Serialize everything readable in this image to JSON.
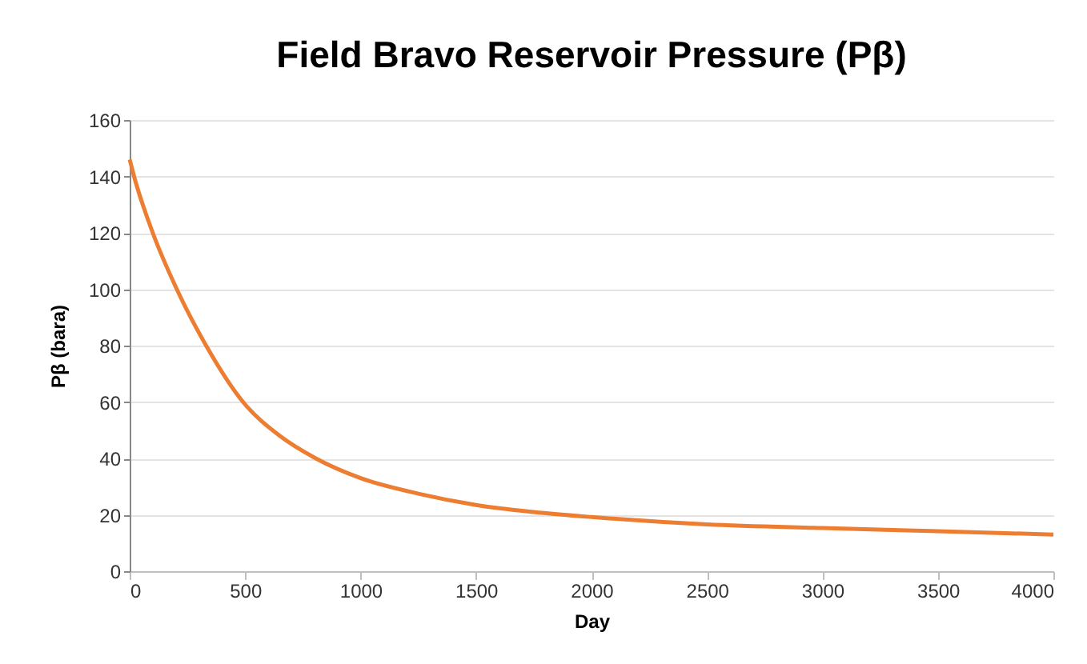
{
  "chart_data": {
    "type": "line",
    "title": "Field Bravo Reservoir Pressure (Pβ)",
    "xlabel": "Day",
    "ylabel": "Pβ (bara)",
    "x": [
      0,
      19,
      100,
      204,
      331,
      491,
      650,
      806,
      1000,
      1250,
      1500,
      1750,
      2000,
      2500,
      3000,
      3500,
      4000
    ],
    "series": [
      {
        "color": "#ed7d31",
        "values": [
          146,
          140,
          120,
          100,
          80,
          60,
          48,
          40,
          33,
          27.5,
          23.5,
          21,
          19.2,
          16.6,
          15.3,
          14.2,
          13
        ]
      }
    ],
    "xlim": [
      0,
      4000
    ],
    "xticks": [
      0,
      500,
      1000,
      1500,
      2000,
      2500,
      3000,
      3500,
      4000
    ],
    "ylim": [
      0,
      160
    ],
    "yticks": [
      0,
      20,
      40,
      60,
      80,
      100,
      120,
      140,
      160
    ],
    "grid": "y",
    "legend": false,
    "marker": "none",
    "line_style": "solid"
  }
}
